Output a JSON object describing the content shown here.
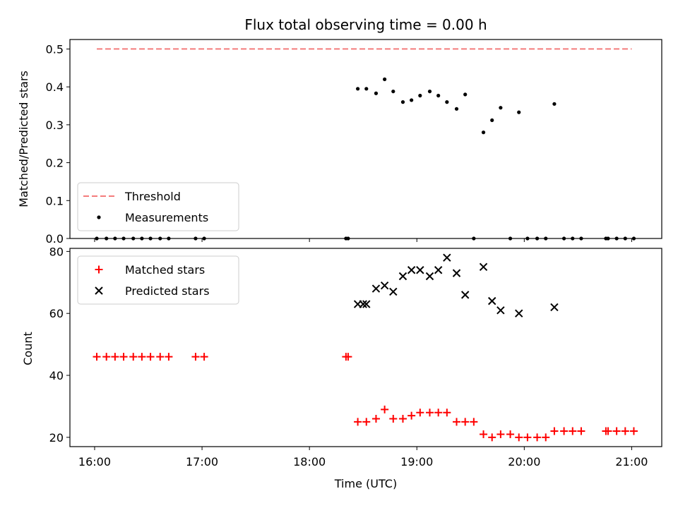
{
  "chart_data": {
    "type": "scatter",
    "title": "Flux total observing time = 0.00 h",
    "xlabel": "Time (UTC)",
    "x_unit": "hours UTC",
    "xlim": [
      15.77,
      21.28
    ],
    "x_ticks": [
      {
        "value": 16,
        "label": "16:00"
      },
      {
        "value": 17,
        "label": "17:00"
      },
      {
        "value": 18,
        "label": "18:00"
      },
      {
        "value": 19,
        "label": "19:00"
      },
      {
        "value": 20,
        "label": "20:00"
      },
      {
        "value": 21,
        "label": "21:00"
      }
    ],
    "panels": [
      {
        "name": "ratio",
        "ylabel": "Matched/Predicted stars",
        "ylim": [
          0,
          0.525
        ],
        "y_ticks": [
          "0.0",
          "0.1",
          "0.2",
          "0.3",
          "0.4",
          "0.5"
        ],
        "y_tick_values": [
          0,
          0.1,
          0.2,
          0.3,
          0.4,
          0.5
        ],
        "legend_position": "lower-left",
        "threshold": {
          "name": "Threshold",
          "value": 0.5,
          "x_range": [
            16.02,
            21.0
          ],
          "color": "#f47c7c",
          "style": "dashed"
        },
        "series": [
          {
            "name": "Measurements",
            "marker": "dot",
            "color": "#000000",
            "points": [
              [
                16.02,
                0
              ],
              [
                16.11,
                0
              ],
              [
                16.19,
                0
              ],
              [
                16.27,
                0
              ],
              [
                16.36,
                0
              ],
              [
                16.44,
                0
              ],
              [
                16.52,
                0
              ],
              [
                16.61,
                0
              ],
              [
                16.69,
                0
              ],
              [
                16.94,
                0
              ],
              [
                17.02,
                0
              ],
              [
                18.34,
                0
              ],
              [
                18.36,
                0
              ],
              [
                18.45,
                0.395
              ],
              [
                18.53,
                0.395
              ],
              [
                18.62,
                0.383
              ],
              [
                18.7,
                0.42
              ],
              [
                18.78,
                0.388
              ],
              [
                18.87,
                0.36
              ],
              [
                18.95,
                0.365
              ],
              [
                19.03,
                0.377
              ],
              [
                19.12,
                0.388
              ],
              [
                19.2,
                0.377
              ],
              [
                19.28,
                0.36
              ],
              [
                19.37,
                0.342
              ],
              [
                19.45,
                0.38
              ],
              [
                19.53,
                0
              ],
              [
                19.62,
                0.28
              ],
              [
                19.7,
                0.312
              ],
              [
                19.78,
                0.345
              ],
              [
                19.87,
                0
              ],
              [
                19.95,
                0.333
              ],
              [
                20.03,
                0
              ],
              [
                20.12,
                0
              ],
              [
                20.2,
                0
              ],
              [
                20.28,
                0.355
              ],
              [
                20.37,
                0
              ],
              [
                20.45,
                0
              ],
              [
                20.53,
                0
              ],
              [
                20.76,
                0
              ],
              [
                20.78,
                0
              ],
              [
                20.86,
                0
              ],
              [
                20.94,
                0
              ],
              [
                21.02,
                0
              ]
            ]
          }
        ]
      },
      {
        "name": "counts",
        "ylabel": "Count",
        "ylim": [
          17,
          81
        ],
        "y_ticks": [
          "20",
          "40",
          "60",
          "80"
        ],
        "y_tick_values": [
          20,
          40,
          60,
          80
        ],
        "legend_position": "upper-left",
        "series": [
          {
            "name": "Matched stars",
            "marker": "plus",
            "color": "#ff0000",
            "points": [
              [
                16.02,
                46
              ],
              [
                16.11,
                46
              ],
              [
                16.19,
                46
              ],
              [
                16.27,
                46
              ],
              [
                16.36,
                46
              ],
              [
                16.44,
                46
              ],
              [
                16.52,
                46
              ],
              [
                16.61,
                46
              ],
              [
                16.69,
                46
              ],
              [
                16.94,
                46
              ],
              [
                17.02,
                46
              ],
              [
                18.34,
                46
              ],
              [
                18.36,
                46
              ],
              [
                18.45,
                25
              ],
              [
                18.53,
                25
              ],
              [
                18.62,
                26
              ],
              [
                18.7,
                29
              ],
              [
                18.78,
                26
              ],
              [
                18.87,
                26
              ],
              [
                18.95,
                27
              ],
              [
                19.03,
                28
              ],
              [
                19.12,
                28
              ],
              [
                19.2,
                28
              ],
              [
                19.28,
                28
              ],
              [
                19.37,
                25
              ],
              [
                19.45,
                25
              ],
              [
                19.53,
                25
              ],
              [
                19.62,
                21
              ],
              [
                19.7,
                20
              ],
              [
                19.78,
                21
              ],
              [
                19.87,
                21
              ],
              [
                19.95,
                20
              ],
              [
                20.03,
                20
              ],
              [
                20.12,
                20
              ],
              [
                20.2,
                20
              ],
              [
                20.28,
                22
              ],
              [
                20.37,
                22
              ],
              [
                20.45,
                22
              ],
              [
                20.53,
                22
              ],
              [
                20.76,
                22
              ],
              [
                20.78,
                22
              ],
              [
                20.86,
                22
              ],
              [
                20.94,
                22
              ],
              [
                21.02,
                22
              ]
            ]
          },
          {
            "name": "Predicted stars",
            "marker": "x",
            "color": "#000000",
            "points": [
              [
                18.45,
                63
              ],
              [
                18.5,
                63
              ],
              [
                18.53,
                63
              ],
              [
                18.62,
                68
              ],
              [
                18.7,
                69
              ],
              [
                18.78,
                67
              ],
              [
                18.87,
                72
              ],
              [
                18.95,
                74
              ],
              [
                19.03,
                74
              ],
              [
                19.12,
                72
              ],
              [
                19.2,
                74
              ],
              [
                19.28,
                78
              ],
              [
                19.37,
                73
              ],
              [
                19.45,
                66
              ],
              [
                19.62,
                75
              ],
              [
                19.7,
                64
              ],
              [
                19.78,
                61
              ],
              [
                19.95,
                60
              ],
              [
                20.28,
                62
              ]
            ]
          }
        ]
      }
    ]
  }
}
